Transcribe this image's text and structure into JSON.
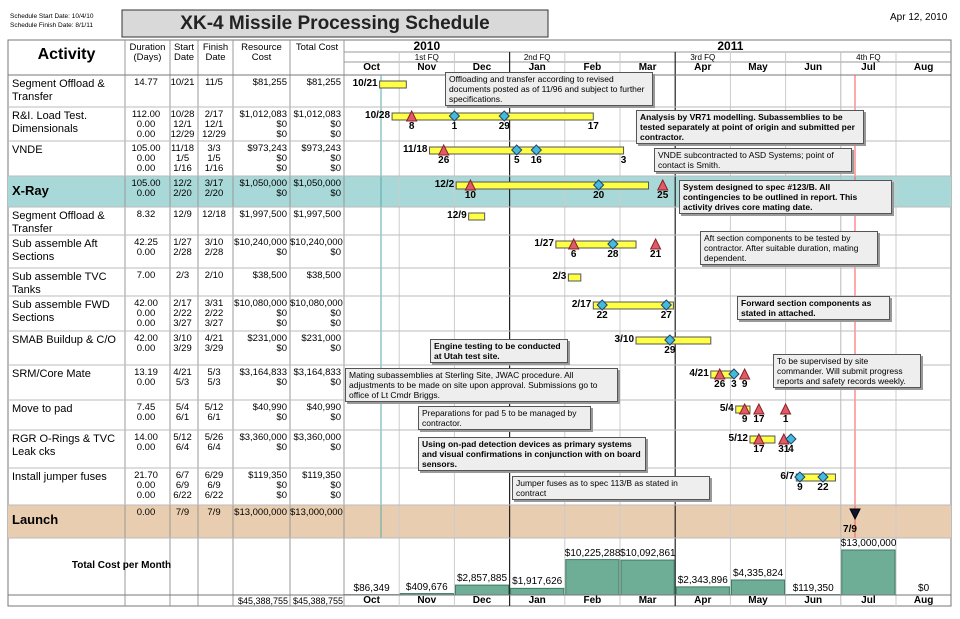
{
  "header": {
    "start_date": "Schedule Start Date: 10/4/10",
    "finish_date": "Schedule Finish Date: 8/1/11",
    "title": "XK-4 Missile Processing Schedule",
    "date": "Apr 12, 2010"
  },
  "columns": [
    "Activity",
    "Duration (Days)",
    "Start Date",
    "Finish Date",
    "Resource Cost",
    "Total Cost"
  ],
  "years": [
    "2010",
    "2011"
  ],
  "quarters": [
    "1st FQ",
    "2nd FQ",
    "3rd FQ",
    "4th FQ"
  ],
  "months": [
    "Oct",
    "Nov",
    "Dec",
    "Jan",
    "Feb",
    "Mar",
    "Apr",
    "May",
    "Jun",
    "Jul",
    "Aug"
  ],
  "rows": [
    {
      "name": "Segment Offload & Transfer",
      "duration": [
        "14.77"
      ],
      "start": [
        "10/21"
      ],
      "finish": [
        "11/5"
      ],
      "resource": [
        "$81,255"
      ],
      "total": [
        "$81,255"
      ],
      "milestones": []
    },
    {
      "name": "R&I. Load Test. Dimensionals",
      "duration": [
        "112.00",
        "0.00",
        "0.00"
      ],
      "start": [
        "10/28",
        "12/1",
        "12/29"
      ],
      "finish": [
        "2/17",
        "12/1",
        "12/29"
      ],
      "resource": [
        "$1,012,083",
        "$0",
        "$0"
      ],
      "total": [
        "$1,012,083",
        "$0",
        "$0"
      ],
      "milestones": [
        {
          "month": "Nov",
          "label": "8",
          "shape": "triangle"
        },
        {
          "month": "Dec",
          "label": "1",
          "shape": "diamond"
        },
        {
          "month": "Dec",
          "label": "29",
          "shape": "diamond"
        },
        {
          "month": "Feb",
          "label": "17",
          "shape": "none"
        }
      ]
    },
    {
      "name": "VNDE",
      "duration": [
        "105.00",
        "0.00",
        "0.00"
      ],
      "start": [
        "11/18",
        "1/5",
        "1/16"
      ],
      "finish": [
        "3/3",
        "1/5",
        "1/16"
      ],
      "resource": [
        "$973,243",
        "$0",
        "$0"
      ],
      "total": [
        "$973,243",
        "$0",
        "$0"
      ],
      "milestones": [
        {
          "month": "Nov",
          "label": "26",
          "shape": "triangle"
        },
        {
          "month": "Jan",
          "label": "5",
          "shape": "diamond"
        },
        {
          "month": "Jan",
          "label": "16",
          "shape": "diamond"
        },
        {
          "month": "Mar",
          "label": "3",
          "shape": "none"
        }
      ]
    },
    {
      "name": "X-Ray",
      "summary": true,
      "duration": [
        "105.00",
        "0.00"
      ],
      "start": [
        "12/2",
        "2/20"
      ],
      "finish": [
        "3/17",
        "2/20"
      ],
      "resource": [
        "$1,050,000",
        "$0"
      ],
      "total": [
        "$1,050,000",
        "$0"
      ],
      "milestones": [
        {
          "month": "Dec",
          "label": "10",
          "shape": "triangle"
        },
        {
          "month": "Feb",
          "label": "20",
          "shape": "diamond"
        },
        {
          "month": "Mar",
          "label": "25",
          "shape": "triangle"
        }
      ]
    },
    {
      "name": "Segment Offload & Transfer",
      "duration": [
        "8.32"
      ],
      "start": [
        "12/9"
      ],
      "finish": [
        "12/18"
      ],
      "resource": [
        "$1,997,500"
      ],
      "total": [
        "$1,997,500"
      ],
      "milestones": []
    },
    {
      "name": "Sub assemble Aft Sections",
      "duration": [
        "42.25",
        "0.00"
      ],
      "start": [
        "1/27",
        "2/28"
      ],
      "finish": [
        "3/10",
        "2/28"
      ],
      "resource": [
        "$10,240,000",
        "$0"
      ],
      "total": [
        "$10,240,000",
        "$0"
      ],
      "milestones": [
        {
          "month": "Feb",
          "label": "6",
          "shape": "triangle"
        },
        {
          "month": "Feb",
          "label": "28",
          "shape": "diamond"
        },
        {
          "month": "Mar",
          "label": "21",
          "shape": "triangle"
        }
      ]
    },
    {
      "name": "Sub assemble TVC Tanks",
      "duration": [
        "7.00"
      ],
      "start": [
        "2/3"
      ],
      "finish": [
        "2/10"
      ],
      "resource": [
        "$38,500"
      ],
      "total": [
        "$38,500"
      ],
      "milestones": []
    },
    {
      "name": "Sub assemble FWD Sections",
      "duration": [
        "42.00",
        "0.00",
        "0.00"
      ],
      "start": [
        "2/17",
        "2/22",
        "3/27"
      ],
      "finish": [
        "3/31",
        "2/22",
        "3/27"
      ],
      "resource": [
        "$10,080,000",
        "$0",
        "$0"
      ],
      "total": [
        "$10,080,000",
        "$0",
        "$0"
      ],
      "milestones": [
        {
          "month": "Feb",
          "label": "22",
          "shape": "diamond"
        },
        {
          "month": "Mar",
          "label": "27",
          "shape": "diamond"
        }
      ]
    },
    {
      "name": "SMAB Buildup & C/O",
      "duration": [
        "42.00",
        "0.00"
      ],
      "start": [
        "3/10",
        "3/29"
      ],
      "finish": [
        "4/21",
        "3/29"
      ],
      "resource": [
        "$231,000",
        "$0"
      ],
      "total": [
        "$231,000",
        "$0"
      ],
      "milestones": [
        {
          "month": "Mar",
          "label": "29",
          "shape": "diamond"
        }
      ]
    },
    {
      "name": "SRM/Core Mate",
      "duration": [
        "13.19",
        "0.00"
      ],
      "start": [
        "4/21",
        "5/3"
      ],
      "finish": [
        "5/3",
        "5/3"
      ],
      "resource": [
        "$3,164,833",
        "$0"
      ],
      "total": [
        "$3,164,833",
        "$0"
      ],
      "milestones": [
        {
          "month": "Apr",
          "label": "26",
          "shape": "triangle"
        },
        {
          "month": "May",
          "label": "3",
          "shape": "diamond"
        },
        {
          "month": "May",
          "label": "9",
          "shape": "triangle"
        }
      ]
    },
    {
      "name": "Move to pad",
      "duration": [
        "7.45",
        "0.00"
      ],
      "start": [
        "5/4",
        "6/1"
      ],
      "finish": [
        "5/12",
        "6/1"
      ],
      "resource": [
        "$40,990",
        "$0"
      ],
      "total": [
        "$40,990",
        "$0"
      ],
      "milestones": [
        {
          "month": "May",
          "label": "9",
          "shape": "triangle"
        },
        {
          "month": "May",
          "label": "17",
          "shape": "triangle"
        },
        {
          "month": "Jun",
          "label": "1",
          "shape": "triangle"
        }
      ]
    },
    {
      "name": "RGR O-Rings & TVC Leak cks",
      "duration": [
        "14.00",
        "0.00"
      ],
      "start": [
        "5/12",
        "6/4"
      ],
      "finish": [
        "5/26",
        "6/4"
      ],
      "resource": [
        "$3,360,000",
        "$0"
      ],
      "total": [
        "$3,360,000",
        "$0"
      ],
      "milestones": [
        {
          "month": "May",
          "label": "17",
          "shape": "triangle"
        },
        {
          "month": "May",
          "label": "31",
          "shape": "triangle"
        },
        {
          "month": "Jun",
          "label": "4",
          "shape": "diamond"
        }
      ]
    },
    {
      "name": "Install jumper fuses",
      "duration": [
        "21.70",
        "0.00",
        "0.00"
      ],
      "start": [
        "6/7",
        "6/9",
        "6/22"
      ],
      "finish": [
        "6/29",
        "6/9",
        "6/22"
      ],
      "resource": [
        "$119,350",
        "$0",
        "$0"
      ],
      "total": [
        "$119,350",
        "$0",
        "$0"
      ],
      "milestones": [
        {
          "month": "Jun",
          "label": "9",
          "shape": "diamond"
        },
        {
          "month": "Jun",
          "label": "22",
          "shape": "diamond"
        }
      ]
    },
    {
      "name": "Launch",
      "summary": true,
      "duration": [
        "0.00"
      ],
      "start": [
        "7/9"
      ],
      "finish": [
        "7/9"
      ],
      "resource": [
        "$13,000,000"
      ],
      "total": [
        "$13,000,000"
      ],
      "milestones": [
        {
          "month": "Jul",
          "label": "9",
          "shape": "down"
        }
      ]
    }
  ],
  "notes": [
    "Offloading and transfer according to revised documents posted as of 11/96 and subject to further specifications.",
    "Analysis by VR71 modelling. Subassemblies to be tested separately at point of origin and submitted per contractor.",
    "VNDE subcontracted to ASD Systems; point of contact is Smith.",
    "System designed to spec #123/B. All contingencies to be outlined in report. This activity drives core mating date.",
    "Aft section components to be tested by contractor. After suitable duration, mating dependent.",
    "Forward section components as stated in attached.",
    "Engine testing to be conducted at Utah test site.",
    "To be supervised by site commander. Will submit progress reports and safety records weekly.",
    "Mating subassemblies at Sterling Site, JWAC procedure. All adjustments to be made on site upon approval. Submissions go to office of Lt Cmdr Briggs.",
    "Preparations for pad 5 to be managed by contractor.",
    "Using on-pad detection devices as primary systems and visual confirmations in conjunction with on board sensors.",
    "Jumper fuses as to spec 113/B as stated in contract"
  ],
  "cost": {
    "label": "Total Cost per Month",
    "values": [
      86349,
      409676,
      2857885,
      1917626,
      10225288,
      10092861,
      2343896,
      4335824,
      119350,
      13000000,
      0
    ],
    "value_labels": [
      "$86,349",
      "$409,676",
      "$2,857,885",
      "$1,917,626",
      "$10,225,288",
      "$10,092,861",
      "$2,343,896",
      "$4,335,824",
      "$119,350",
      "$13,000,000",
      "$0"
    ],
    "resource_total": "$45,388,755",
    "total": "$45,388,755"
  }
}
